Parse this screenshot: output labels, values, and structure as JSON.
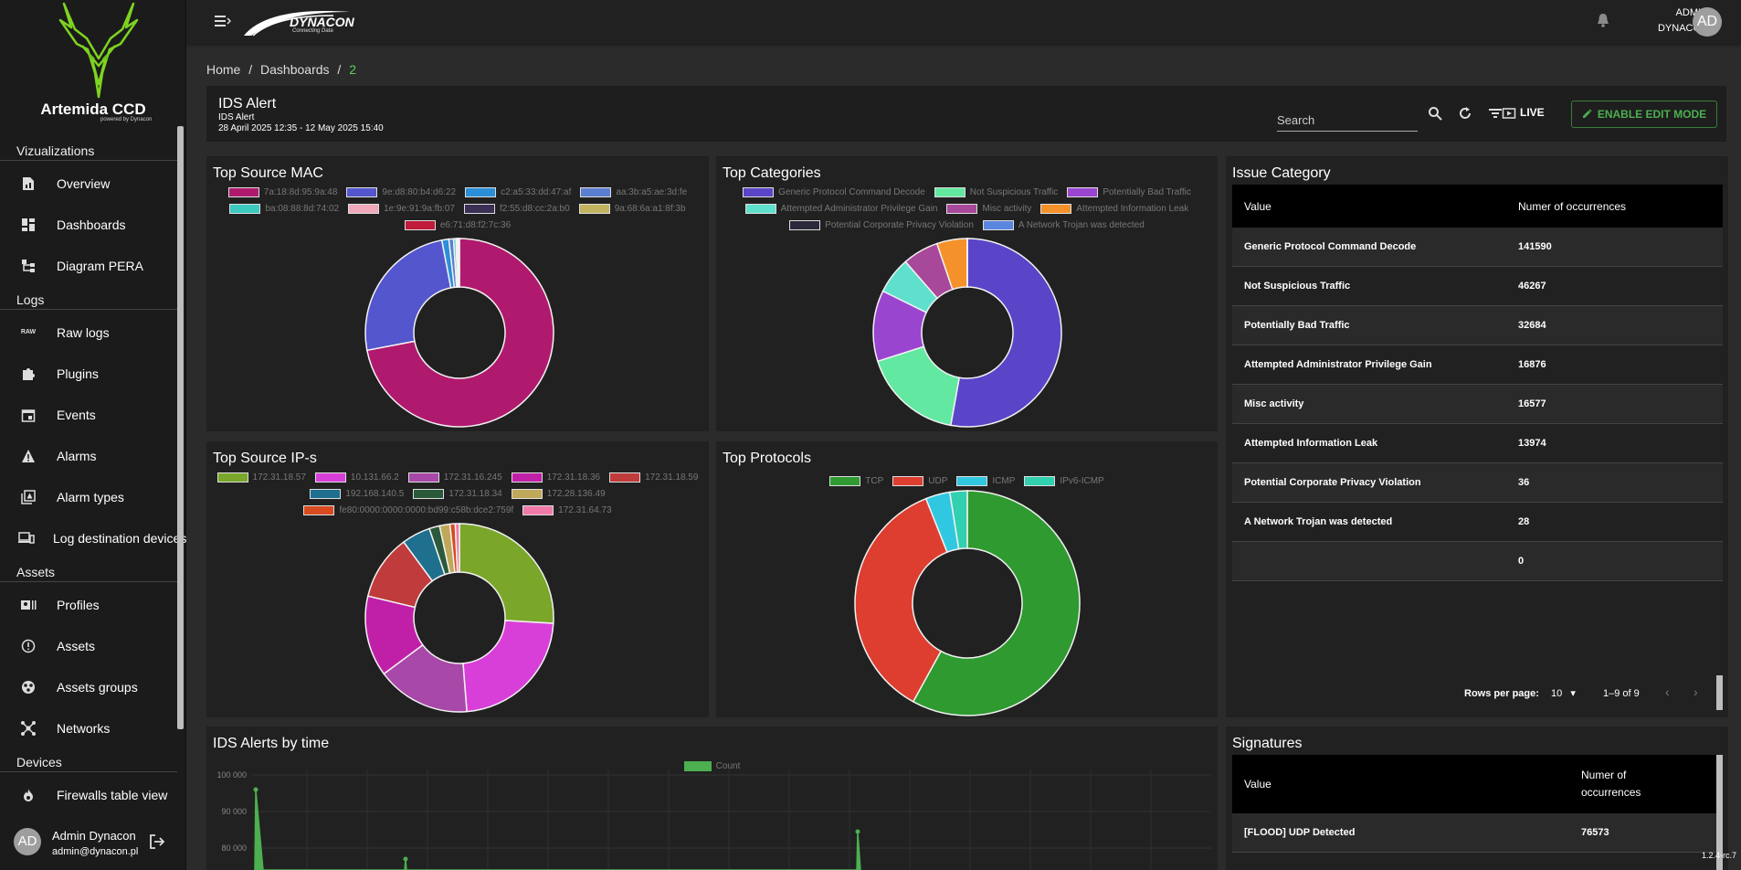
{
  "sidebar": {
    "brand_name": "Artemida CCD",
    "brand_sub": "powered by Dynacon",
    "sections": [
      {
        "label": "Vizualizations",
        "items": [
          {
            "name": "overview",
            "icon": "file-chart-icon",
            "label": "Overview"
          },
          {
            "name": "dashboards",
            "icon": "dashboard-icon",
            "label": "Dashboards"
          },
          {
            "name": "diagram-pera",
            "icon": "diagram-icon",
            "label": "Diagram PERA"
          }
        ]
      },
      {
        "label": "Logs",
        "items": [
          {
            "name": "raw-logs",
            "icon": "raw-icon",
            "label": "Raw logs"
          },
          {
            "name": "plugins",
            "icon": "puzzle-icon",
            "label": "Plugins"
          },
          {
            "name": "events",
            "icon": "calendar-icon",
            "label": "Events"
          },
          {
            "name": "alarms",
            "icon": "warning-icon",
            "label": "Alarms"
          },
          {
            "name": "alarm-types",
            "icon": "alarm-type-icon",
            "label": "Alarm types"
          },
          {
            "name": "log-destination-devices",
            "icon": "devices-icon",
            "label": "Log destination devices"
          }
        ]
      },
      {
        "label": "Assets",
        "items": [
          {
            "name": "profiles",
            "icon": "profile-card-icon",
            "label": "Profiles"
          },
          {
            "name": "assets",
            "icon": "alert-circle-icon",
            "label": "Assets"
          },
          {
            "name": "assets-groups",
            "icon": "group-icon",
            "label": "Assets groups"
          },
          {
            "name": "networks",
            "icon": "network-icon",
            "label": "Networks"
          }
        ]
      },
      {
        "label": "Devices",
        "items": [
          {
            "name": "firewalls-table-view",
            "icon": "fire-icon",
            "label": "Firewalls table view"
          }
        ]
      }
    ],
    "user": {
      "initials": "AD",
      "name": "Admin Dynacon",
      "email": "admin@dynacon.pl"
    }
  },
  "topbar": {
    "logo_text": "DYNACON",
    "logo_tagline": "Connecting Data",
    "user_line1": "ADMIN",
    "user_line2": "DYNACON",
    "avatar": "AD"
  },
  "breadcrumb": {
    "home": "Home",
    "sep": "/",
    "dashboards": "Dashboards",
    "current": "2"
  },
  "header": {
    "title": "IDS Alert",
    "subtitle": "IDS Alert",
    "range": "28 April 2025 12:35 - 12 May 2025 15:40",
    "search_placeholder": "Search",
    "live_label": "LIVE",
    "edit_label": "ENABLE EDIT MODE"
  },
  "chart_data": [
    {
      "type": "pie",
      "title": "Top Source MAC",
      "labels": [
        "7a:18:8d:95:9a:48",
        "9e:d8:80:b4:d6:22",
        "c2:a5:33:dd:47:af",
        "aa:3b:a5:ae:3d:fe",
        "ba:08:88:8d:74:02",
        "1e:9e:91:9a:fb:07",
        "f2:55:d8:cc:2a:b0",
        "9a:68:6a:a1:8f:3b",
        "e6:71:d8:f2:7c:36"
      ],
      "values": [
        720,
        250,
        12,
        8,
        4,
        2,
        2,
        1,
        1
      ],
      "colors": [
        "#b01a6e",
        "#5356cc",
        "#2a8fd8",
        "#5b7fd0",
        "#3cc9c0",
        "#f0a9b9",
        "#3a2f55",
        "#c2b35f",
        "#c01b3a"
      ],
      "legend": "top"
    },
    {
      "type": "pie",
      "title": "Top Categories",
      "labels": [
        "Generic Protocol Command Decode",
        "Not Suspicious Traffic",
        "Potentially Bad Traffic",
        "Attempted Administrator Privilege Gain",
        "Misc activity",
        "Attempted Information Leak",
        "Potential Corporate Privacy Violation",
        "A Network Trojan was detected"
      ],
      "values": [
        141590,
        46267,
        32684,
        16876,
        16577,
        13974,
        36,
        28
      ],
      "colors": [
        "#5a45c8",
        "#62e8a0",
        "#9a45d0",
        "#5ee0cc",
        "#a8489a",
        "#f5912a",
        "#2a2a3a",
        "#5b86e0"
      ],
      "legend": "top"
    },
    {
      "type": "pie",
      "title": "Top Source IP-s",
      "labels": [
        "172.31.18.57",
        "10.131.66.2",
        "172.31.16.245",
        "172.31.18.36",
        "172.31.18.59",
        "192.168.140.5",
        "172.31.18.34",
        "172.28.136.49",
        "fe80:0000:0000:0000:bd99:c58b:dce2:759f",
        "172.31.64.73"
      ],
      "values": [
        290,
        255,
        180,
        155,
        125,
        55,
        20,
        20,
        10,
        8
      ],
      "colors": [
        "#7aa62a",
        "#d83fd8",
        "#a848a8",
        "#c020a8",
        "#c03b3b",
        "#1f6f8f",
        "#2a5a3a",
        "#c0a85a",
        "#d84a20",
        "#f07aa8"
      ],
      "legend": "top"
    },
    {
      "type": "pie",
      "title": "Top Protocols",
      "labels": [
        "TCP",
        "UDP",
        "ICMP",
        "IPv6-ICMP"
      ],
      "values": [
        580,
        360,
        35,
        25
      ],
      "colors": [
        "#2e9a30",
        "#dd3e30",
        "#30c8e0",
        "#30d0b0"
      ],
      "legend": "top"
    },
    {
      "type": "line",
      "title": "IDS Alerts by time",
      "series": [
        {
          "name": "Count",
          "color": "#4caf50"
        }
      ],
      "y_ticks": [
        "100 000",
        "90 000",
        "80 000"
      ],
      "legend": "top"
    }
  ],
  "issue_table": {
    "title": "Issue Category",
    "col_value": "Value",
    "col_count": "Numer of occurrences",
    "rows": [
      {
        "value": "Generic Protocol Command Decode",
        "count": "141590"
      },
      {
        "value": "Not Suspicious Traffic",
        "count": "46267"
      },
      {
        "value": "Potentially Bad Traffic",
        "count": "32684"
      },
      {
        "value": "Attempted Administrator Privilege Gain",
        "count": "16876"
      },
      {
        "value": "Misc activity",
        "count": "16577"
      },
      {
        "value": "Attempted Information Leak",
        "count": "13974"
      },
      {
        "value": "Potential Corporate Privacy Violation",
        "count": "36"
      },
      {
        "value": "A Network Trojan was detected",
        "count": "28"
      },
      {
        "value": "",
        "count": "0"
      }
    ],
    "rows_per_page_label": "Rows per page:",
    "rows_per_page": "10",
    "range_label": "1–9 of 9"
  },
  "signatures_table": {
    "title": "Signatures",
    "col_value": "Value",
    "col_count_1": "Numer of",
    "col_count_2": "occurrences",
    "rows": [
      {
        "value": "[FLOOD] UDP Detected",
        "count": "76573"
      }
    ]
  },
  "version": "1.2.4-rc.7"
}
